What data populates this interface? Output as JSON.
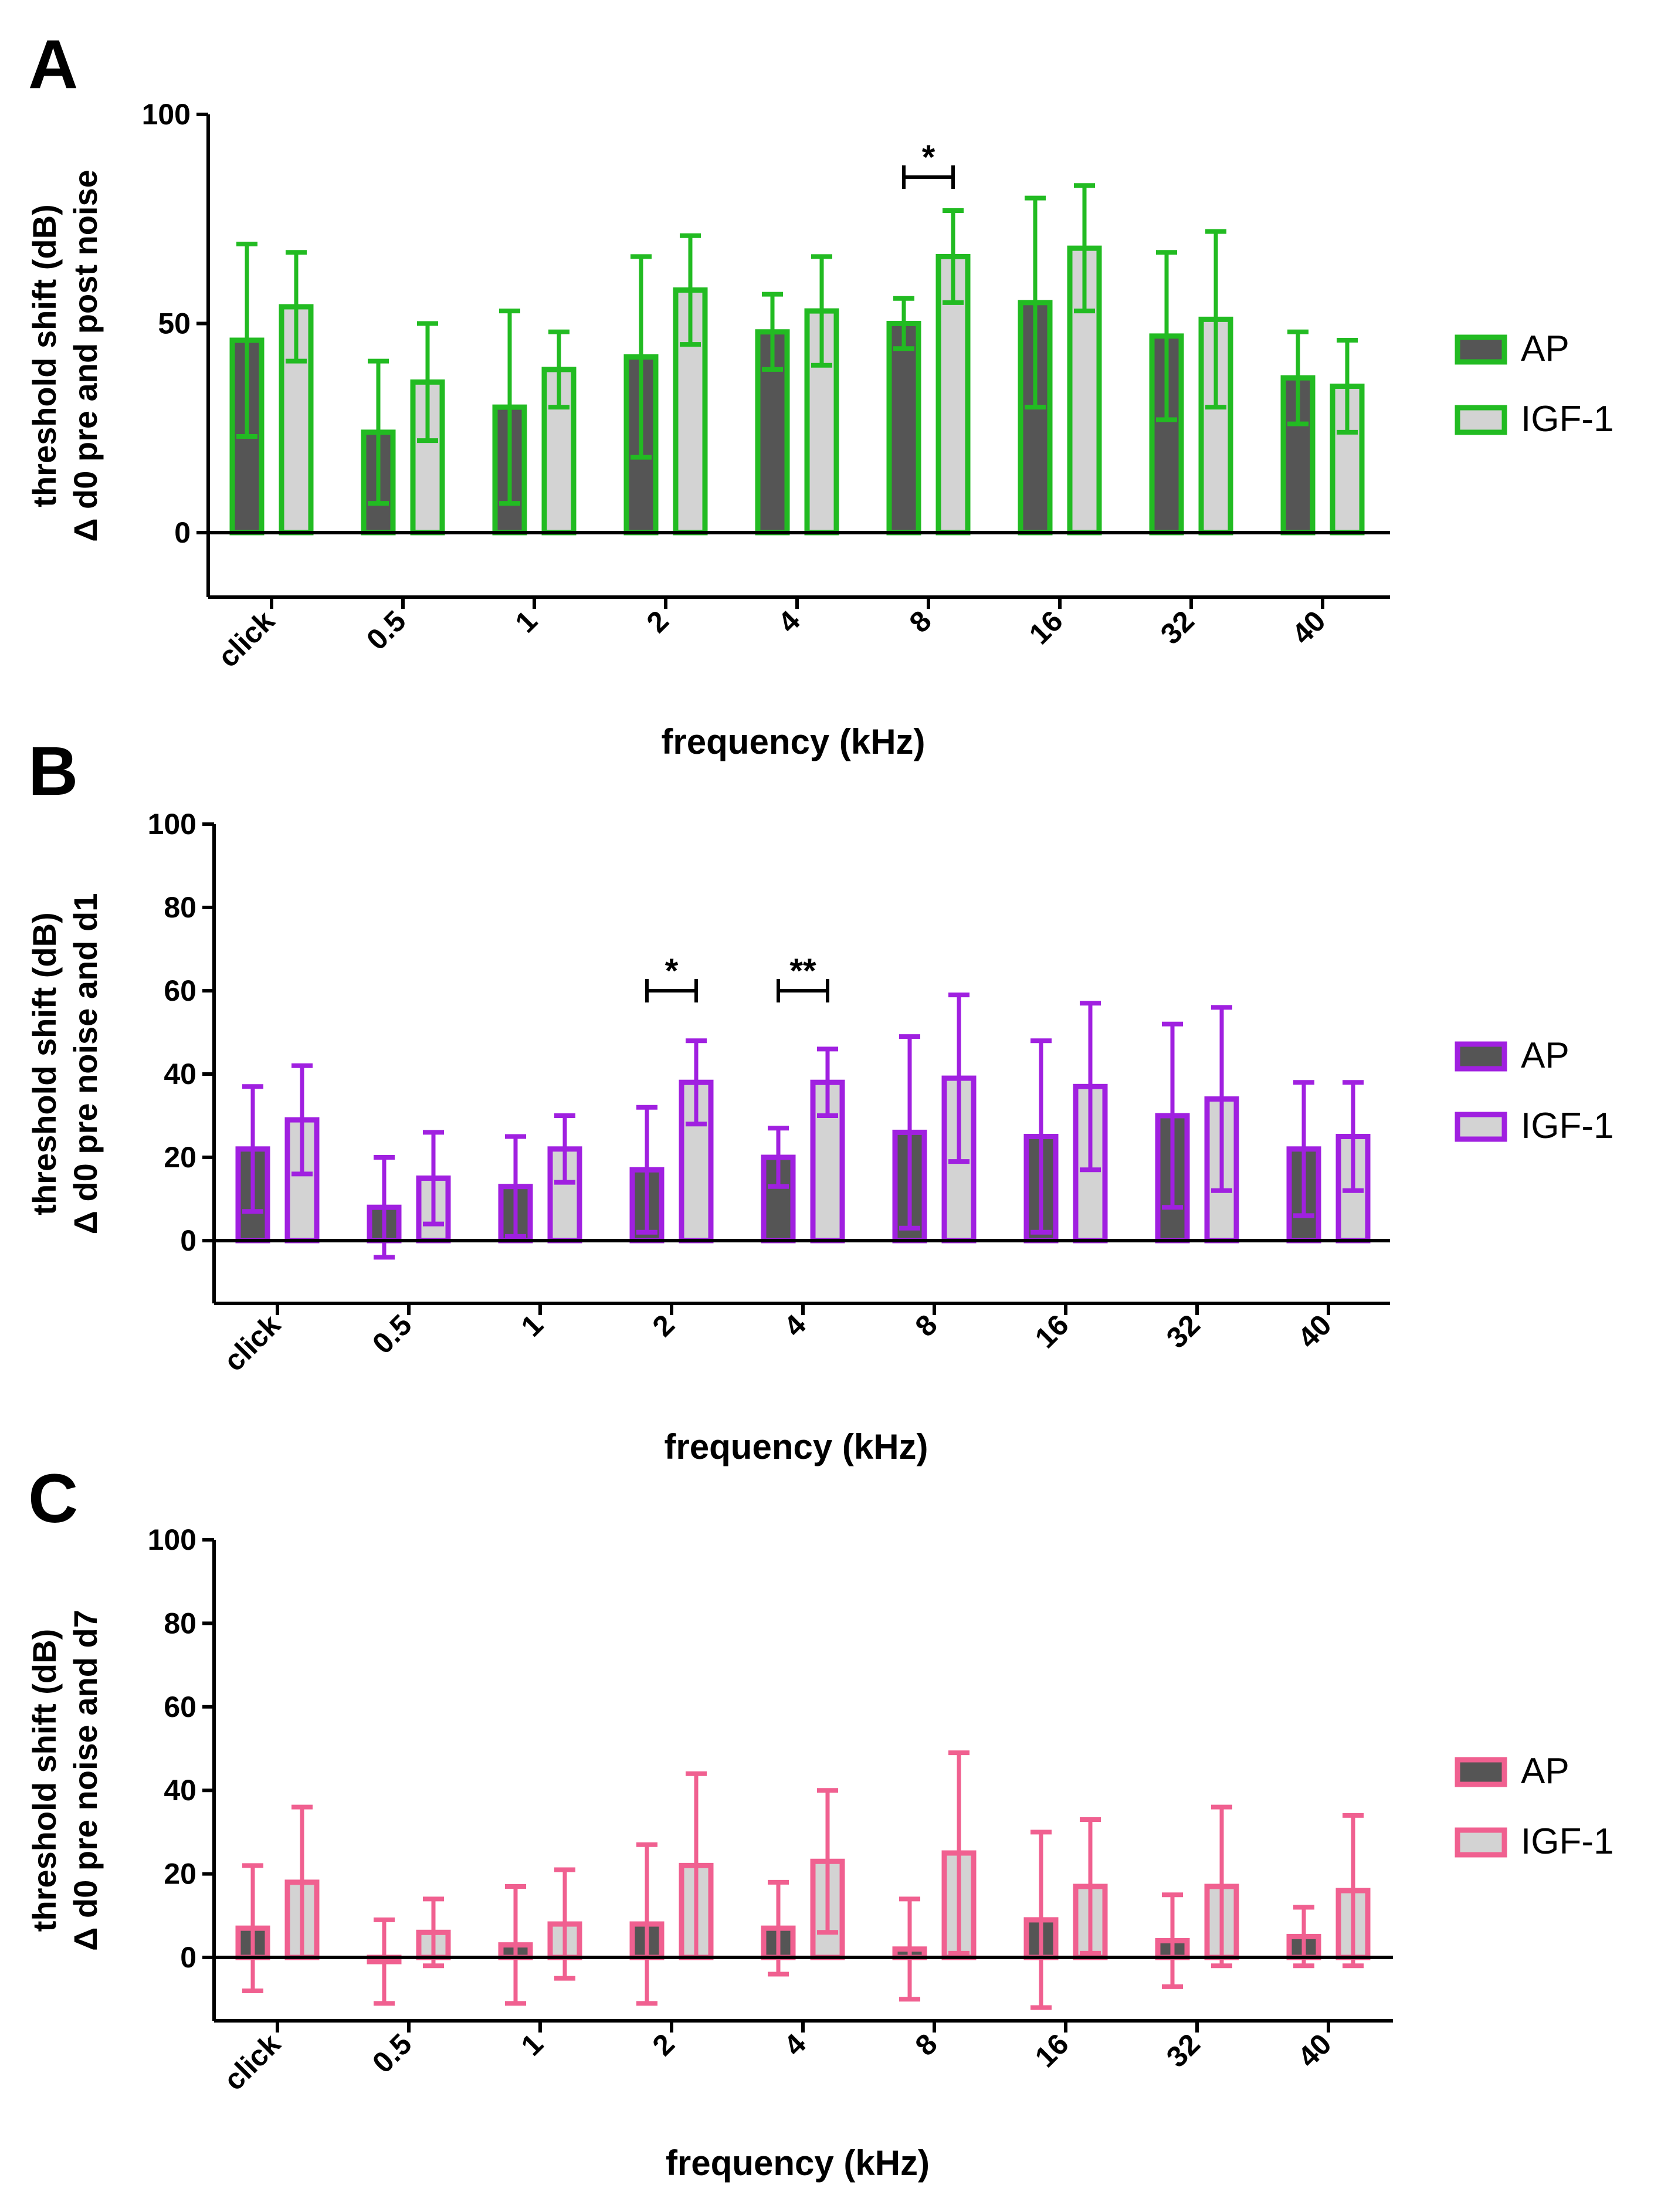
{
  "chart_data": [
    {
      "type": "bar",
      "panel_label": "A",
      "color": "#22bb22",
      "ylabel_lines": [
        "threshold shift (dB)",
        "Δ d0 pre and post noise"
      ],
      "xlabel": "frequency (kHz)",
      "ylim": [
        -15,
        100
      ],
      "yticks": [
        0,
        50,
        100
      ],
      "categories": [
        "click",
        "0.5",
        "1",
        "2",
        "4",
        "8",
        "16",
        "32",
        "40"
      ],
      "series": [
        {
          "name": "AP",
          "values": [
            46,
            24,
            30,
            42,
            48,
            50,
            55,
            47,
            37
          ],
          "errors": [
            23,
            17,
            23,
            24,
            9,
            6,
            25,
            20,
            11
          ]
        },
        {
          "name": "IGF-1",
          "values": [
            54,
            36,
            39,
            58,
            53,
            66,
            68,
            51,
            35
          ],
          "errors": [
            13,
            14,
            9,
            13,
            13,
            11,
            15,
            21,
            11
          ]
        }
      ],
      "significance": [
        {
          "category_index": 5,
          "label": "*",
          "level": 85
        }
      ],
      "legend": [
        "AP",
        "IGF-1"
      ]
    },
    {
      "type": "bar",
      "panel_label": "B",
      "color": "#a020e0",
      "ylabel_lines": [
        "threshold shift (dB)",
        "Δ d0 pre noise and d1"
      ],
      "xlabel": "frequency (kHz)",
      "ylim": [
        -15,
        100
      ],
      "yticks": [
        0,
        20,
        40,
        60,
        80,
        100
      ],
      "categories": [
        "click",
        "0.5",
        "1",
        "2",
        "4",
        "8",
        "16",
        "32",
        "40"
      ],
      "series": [
        {
          "name": "AP",
          "values": [
            22,
            8,
            13,
            17,
            20,
            26,
            25,
            30,
            22
          ],
          "errors": [
            15,
            12,
            12,
            15,
            7,
            23,
            23,
            22,
            16
          ]
        },
        {
          "name": "IGF-1",
          "values": [
            29,
            15,
            22,
            38,
            38,
            39,
            37,
            34,
            25
          ],
          "errors": [
            13,
            11,
            8,
            10,
            8,
            20,
            20,
            22,
            13
          ]
        }
      ],
      "significance": [
        {
          "category_index": 3,
          "label": "*",
          "level": 60
        },
        {
          "category_index": 4,
          "label": "**",
          "level": 60
        }
      ],
      "legend": [
        "AP",
        "IGF-1"
      ]
    },
    {
      "type": "bar",
      "panel_label": "C",
      "color": "#f06090",
      "ylabel_lines": [
        "threshold shift (dB)",
        "Δ d0 pre noise and d7"
      ],
      "xlabel": "frequency (kHz)",
      "ylim": [
        -15,
        100
      ],
      "yticks": [
        0,
        20,
        40,
        60,
        80,
        100
      ],
      "categories": [
        "click",
        "0.5",
        "1",
        "2",
        "4",
        "8",
        "16",
        "32",
        "40"
      ],
      "series": [
        {
          "name": "AP",
          "values": [
            7,
            -1,
            3,
            8,
            7,
            2,
            9,
            4,
            5
          ],
          "errors": [
            15,
            10,
            14,
            19,
            11,
            12,
            21,
            11,
            7
          ]
        },
        {
          "name": "IGF-1",
          "values": [
            18,
            6,
            8,
            22,
            23,
            25,
            17,
            17,
            16
          ],
          "errors": [
            18,
            8,
            13,
            22,
            17,
            24,
            16,
            19,
            18
          ]
        }
      ],
      "significance": [],
      "legend": [
        "AP",
        "IGF-1"
      ]
    }
  ]
}
